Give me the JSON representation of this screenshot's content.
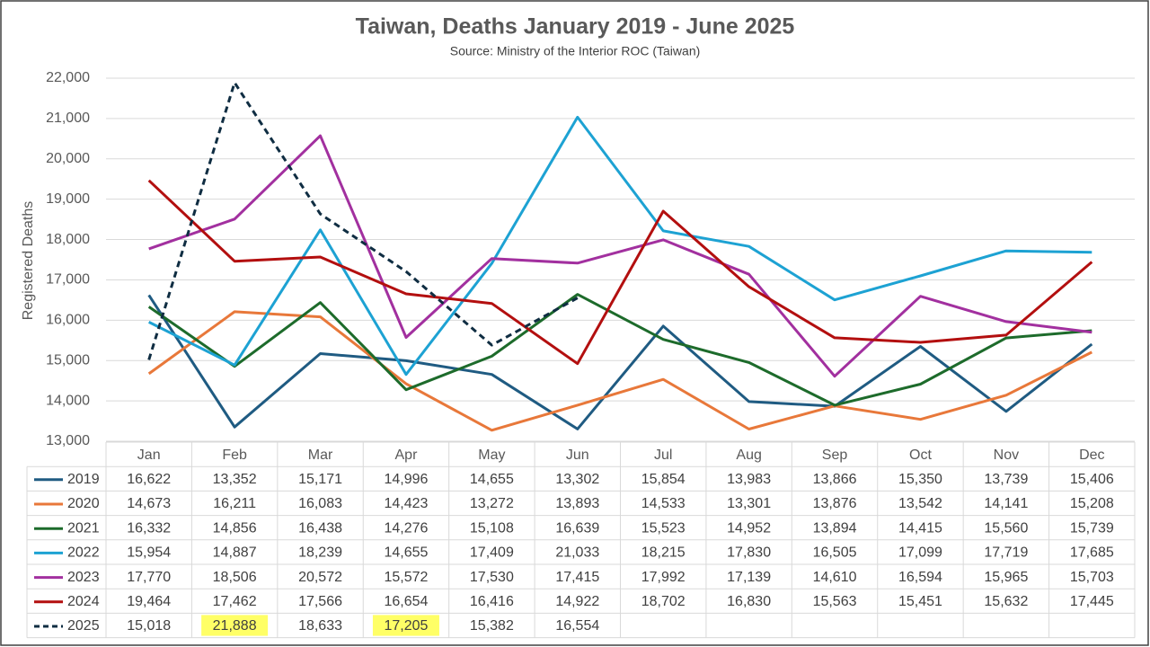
{
  "chart_data": {
    "type": "line",
    "title": "Taiwan, Deaths January 2019 - June 2025",
    "subtitle": "Source: Ministry of the Interior ROC (Taiwan)",
    "y_label": "Registered Deaths",
    "categories": [
      "Jan",
      "Feb",
      "Mar",
      "Apr",
      "May",
      "Jun",
      "Jul",
      "Aug",
      "Sep",
      "Oct",
      "Nov",
      "Dec"
    ],
    "ylim": [
      13000,
      22000
    ],
    "yticks": [
      {
        "value": 13000,
        "label": "13,000"
      },
      {
        "value": 14000,
        "label": "14,000"
      },
      {
        "value": 15000,
        "label": "15,000"
      },
      {
        "value": 16000,
        "label": "16,000"
      },
      {
        "value": 17000,
        "label": "17,000"
      },
      {
        "value": 18000,
        "label": "18,000"
      },
      {
        "value": 19000,
        "label": "19,000"
      },
      {
        "value": 20000,
        "label": "20,000"
      },
      {
        "value": 21000,
        "label": "21,000"
      },
      {
        "value": 22000,
        "label": "22,000"
      }
    ],
    "grid": true,
    "highlight_color": "#ffff66",
    "series": [
      {
        "name": "2019",
        "color": "#1f5b82",
        "dashed": false,
        "values": [
          16622,
          13352,
          15171,
          14996,
          14655,
          13302,
          15854,
          13983,
          13866,
          15350,
          13739,
          15406
        ],
        "value_labels": [
          "16,622",
          "13,352",
          "15,171",
          "14,996",
          "14,655",
          "13,302",
          "15,854",
          "13,983",
          "13,866",
          "15,350",
          "13,739",
          "15,406"
        ]
      },
      {
        "name": "2020",
        "color": "#e8783a",
        "dashed": false,
        "values": [
          14673,
          16211,
          16083,
          14423,
          13272,
          13893,
          14533,
          13301,
          13876,
          13542,
          14141,
          15208
        ],
        "value_labels": [
          "14,673",
          "16,211",
          "16,083",
          "14,423",
          "13,272",
          "13,893",
          "14,533",
          "13,301",
          "13,876",
          "13,542",
          "14,141",
          "15,208"
        ]
      },
      {
        "name": "2021",
        "color": "#1d6b2b",
        "dashed": false,
        "values": [
          16332,
          14856,
          16438,
          14276,
          15108,
          16639,
          15523,
          14952,
          13894,
          14415,
          15560,
          15739
        ],
        "value_labels": [
          "16,332",
          "14,856",
          "16,438",
          "14,276",
          "15,108",
          "16,639",
          "15,523",
          "14,952",
          "13,894",
          "14,415",
          "15,560",
          "15,739"
        ]
      },
      {
        "name": "2022",
        "color": "#1da2d3",
        "dashed": false,
        "values": [
          15954,
          14887,
          18239,
          14655,
          17409,
          21033,
          18215,
          17830,
          16505,
          17099,
          17719,
          17685
        ],
        "value_labels": [
          "15,954",
          "14,887",
          "18,239",
          "14,655",
          "17,409",
          "21,033",
          "18,215",
          "17,830",
          "16,505",
          "17,099",
          "17,719",
          "17,685"
        ]
      },
      {
        "name": "2023",
        "color": "#a2309f",
        "dashed": false,
        "values": [
          17770,
          18506,
          20572,
          15572,
          17530,
          17415,
          17992,
          17139,
          14610,
          16594,
          15965,
          15703
        ],
        "value_labels": [
          "17,770",
          "18,506",
          "20,572",
          "15,572",
          "17,530",
          "17,415",
          "17,992",
          "17,139",
          "14,610",
          "16,594",
          "15,965",
          "15,703"
        ]
      },
      {
        "name": "2024",
        "color": "#b30f0f",
        "dashed": false,
        "values": [
          19464,
          17462,
          17566,
          16654,
          16416,
          14922,
          18702,
          16830,
          15563,
          15451,
          15632,
          17445
        ],
        "value_labels": [
          "19,464",
          "17,462",
          "17,566",
          "16,654",
          "16,416",
          "14,922",
          "18,702",
          "16,830",
          "15,563",
          "15,451",
          "15,632",
          "17,445"
        ]
      },
      {
        "name": "2025",
        "color": "#0f2d42",
        "dashed": true,
        "values": [
          15018,
          21888,
          18633,
          17205,
          15382,
          16554,
          null,
          null,
          null,
          null,
          null,
          null
        ],
        "value_labels": [
          "15,018",
          "21,888",
          "18,633",
          "17,205",
          "15,382",
          "16,554",
          null,
          null,
          null,
          null,
          null,
          null
        ],
        "highlight": [
          1,
          3
        ]
      }
    ]
  }
}
